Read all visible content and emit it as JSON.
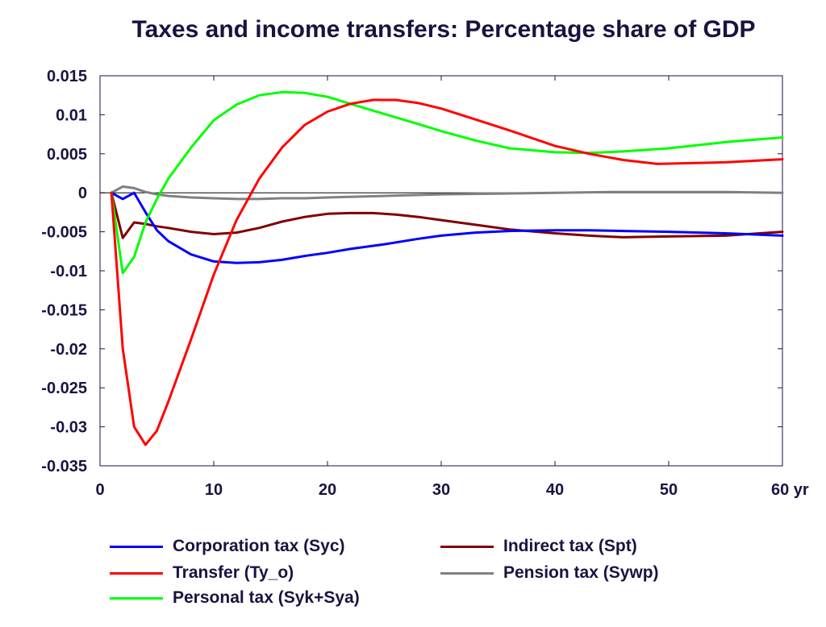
{
  "chart_data": {
    "type": "line",
    "title": "Taxes and income transfers: Percentage share of GDP",
    "xlabel": "",
    "ylabel": "",
    "x_unit_label": "yr",
    "xlim": [
      0,
      60
    ],
    "ylim": [
      -0.035,
      0.015
    ],
    "xticks": [
      0,
      10,
      20,
      30,
      40,
      50,
      60
    ],
    "xtick_labels": [
      "0",
      "10",
      "20",
      "30",
      "40",
      "50",
      "60 yr"
    ],
    "yticks": [
      0.015,
      0.01,
      0.005,
      0,
      -0.005,
      -0.01,
      -0.015,
      -0.02,
      -0.025,
      -0.03,
      -0.035
    ],
    "ytick_labels": [
      "0.015",
      "0.01",
      "0.005",
      "0",
      "-0.005",
      "-0.01",
      "-0.015",
      "-0.02",
      "-0.025",
      "-0.03",
      "-0.035"
    ],
    "grid": false,
    "zero_line": true,
    "legend_position": "bottom",
    "series": [
      {
        "name": "Corporation tax (Syc)",
        "color": "#0000ff",
        "x": [
          1,
          2,
          3,
          4,
          5,
          6,
          8,
          10,
          12,
          14,
          16,
          18,
          20,
          22,
          25,
          28,
          30,
          33,
          36,
          40,
          43,
          46,
          50,
          55,
          60
        ],
        "y": [
          0,
          -0.0008,
          0,
          -0.0025,
          -0.0048,
          -0.0062,
          -0.0079,
          -0.0088,
          -0.009,
          -0.0089,
          -0.0086,
          -0.0081,
          -0.0077,
          -0.0072,
          -0.0066,
          -0.0059,
          -0.0055,
          -0.0051,
          -0.0049,
          -0.0048,
          -0.0048,
          -0.0049,
          -0.005,
          -0.0052,
          -0.0055
        ]
      },
      {
        "name": "Transfer (Ty_o)",
        "color": "#ff0000",
        "x": [
          1,
          2,
          3,
          4,
          5,
          6,
          8,
          10,
          12,
          14,
          16,
          18,
          20,
          22,
          24,
          26,
          28,
          30,
          33,
          36,
          40,
          43,
          46,
          49,
          52,
          55,
          60
        ],
        "y": [
          0,
          -0.02,
          -0.03,
          -0.0323,
          -0.0305,
          -0.0268,
          -0.0188,
          -0.0105,
          -0.0035,
          0.0018,
          0.0058,
          0.0087,
          0.0104,
          0.0114,
          0.0119,
          0.0119,
          0.0115,
          0.0108,
          0.0094,
          0.008,
          0.006,
          0.005,
          0.0042,
          0.0037,
          0.0038,
          0.0039,
          0.0043
        ]
      },
      {
        "name": "Personal tax (Syk+Sya)",
        "color": "#00ff00",
        "x": [
          1,
          2,
          3,
          4,
          5,
          6,
          8,
          10,
          12,
          14,
          16,
          18,
          20,
          22,
          25,
          28,
          30,
          33,
          36,
          40,
          43,
          46,
          50,
          55,
          60
        ],
        "y": [
          0,
          -0.0103,
          -0.0082,
          -0.0038,
          -0.0008,
          0.0018,
          0.0058,
          0.0093,
          0.0113,
          0.0125,
          0.0129,
          0.0128,
          0.0123,
          0.0114,
          0.0101,
          0.0088,
          0.0079,
          0.0067,
          0.0057,
          0.0052,
          0.0051,
          0.0053,
          0.0057,
          0.0065,
          0.0071
        ]
      },
      {
        "name": "Indirect tax (Spt)",
        "color": "#800000",
        "x": [
          1,
          2,
          3,
          4,
          5,
          6,
          8,
          10,
          12,
          14,
          16,
          18,
          20,
          22,
          24,
          26,
          28,
          30,
          33,
          36,
          40,
          43,
          46,
          50,
          55,
          60
        ],
        "y": [
          0,
          -0.0058,
          -0.0038,
          -0.004,
          -0.0043,
          -0.0045,
          -0.005,
          -0.0053,
          -0.0051,
          -0.0045,
          -0.0037,
          -0.0031,
          -0.0027,
          -0.0026,
          -0.0026,
          -0.0028,
          -0.0031,
          -0.0035,
          -0.0041,
          -0.0047,
          -0.0052,
          -0.0055,
          -0.0057,
          -0.0056,
          -0.0055,
          -0.005
        ]
      },
      {
        "name": "Pension tax (Sywp)",
        "color": "#808080",
        "x": [
          1,
          2,
          3,
          4,
          5,
          6,
          8,
          10,
          12,
          14,
          16,
          18,
          20,
          25,
          30,
          35,
          40,
          45,
          50,
          55,
          60
        ],
        "y": [
          0,
          0.0008,
          0.0006,
          0.0001,
          -0.0002,
          -0.0004,
          -0.0006,
          -0.0007,
          -0.0008,
          -0.0008,
          -0.0007,
          -0.0007,
          -0.0006,
          -0.0004,
          -0.0002,
          -0.0001,
          0,
          0.0001,
          0.0001,
          0.0001,
          0
        ]
      }
    ]
  },
  "legend": {
    "items": [
      {
        "label": "Corporation tax (Syc)",
        "color": "#0000ff"
      },
      {
        "label": "Transfer (Ty_o)",
        "color": "#ff0000"
      },
      {
        "label": "Personal tax (Syk+Sya)",
        "color": "#00ff00"
      },
      {
        "label": "Indirect tax (Spt)",
        "color": "#800000"
      },
      {
        "label": "Pension tax (Sywp)",
        "color": "#808080"
      }
    ]
  }
}
